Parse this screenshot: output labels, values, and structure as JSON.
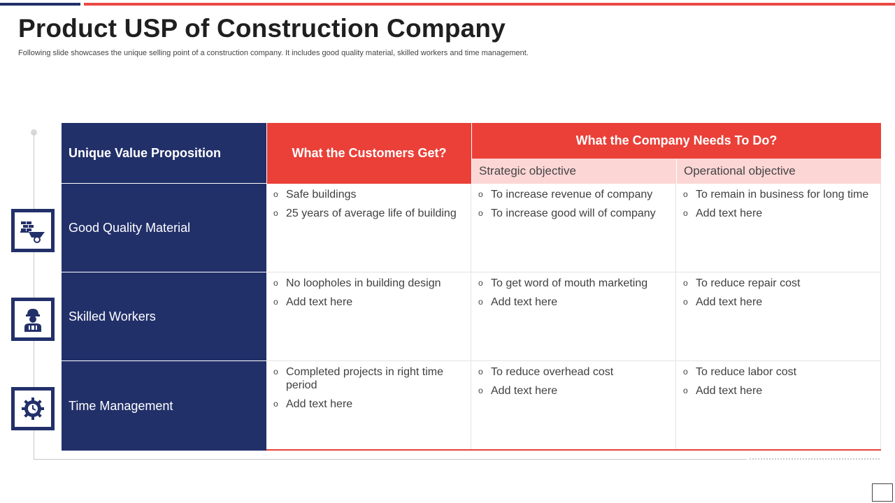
{
  "slide": {
    "title": "Product USP of Construction Company",
    "subtitle": "Following slide showcases the unique selling point of a construction company. It includes good quality material, skilled workers and time management."
  },
  "colors": {
    "navy": "#22306a",
    "red": "#ea4038",
    "pink": "#fcd6d5"
  },
  "table": {
    "col1_header": "Unique Value  Proposition",
    "col2_header": "What the Customers Get?",
    "col3_header": "What the Company  Needs To Do?",
    "sub_header_strategic": "Strategic objective",
    "sub_header_operational": "Operational objective",
    "rows": [
      {
        "label": "Good Quality Material",
        "icon": "wheelbarrow-bricks-icon",
        "customers": [
          "Safe buildings",
          "25 years of average life of building"
        ],
        "strategic": [
          "To increase revenue of company",
          "To increase good will of company"
        ],
        "operational": [
          "To remain in business for long time",
          "Add text here"
        ]
      },
      {
        "label": "Skilled Workers",
        "icon": "worker-icon",
        "customers": [
          "No loopholes in building design",
          "Add text here"
        ],
        "strategic": [
          "To get word of mouth marketing",
          "Add text here"
        ],
        "operational": [
          "To reduce repair cost",
          "Add text here"
        ]
      },
      {
        "label": "Time Management",
        "icon": "gear-clock-icon",
        "customers": [
          "Completed projects in right time period",
          "Add text here"
        ],
        "strategic": [
          "To reduce overhead cost",
          "Add text here"
        ],
        "operational": [
          "To reduce labor cost",
          "Add text here"
        ]
      }
    ]
  }
}
